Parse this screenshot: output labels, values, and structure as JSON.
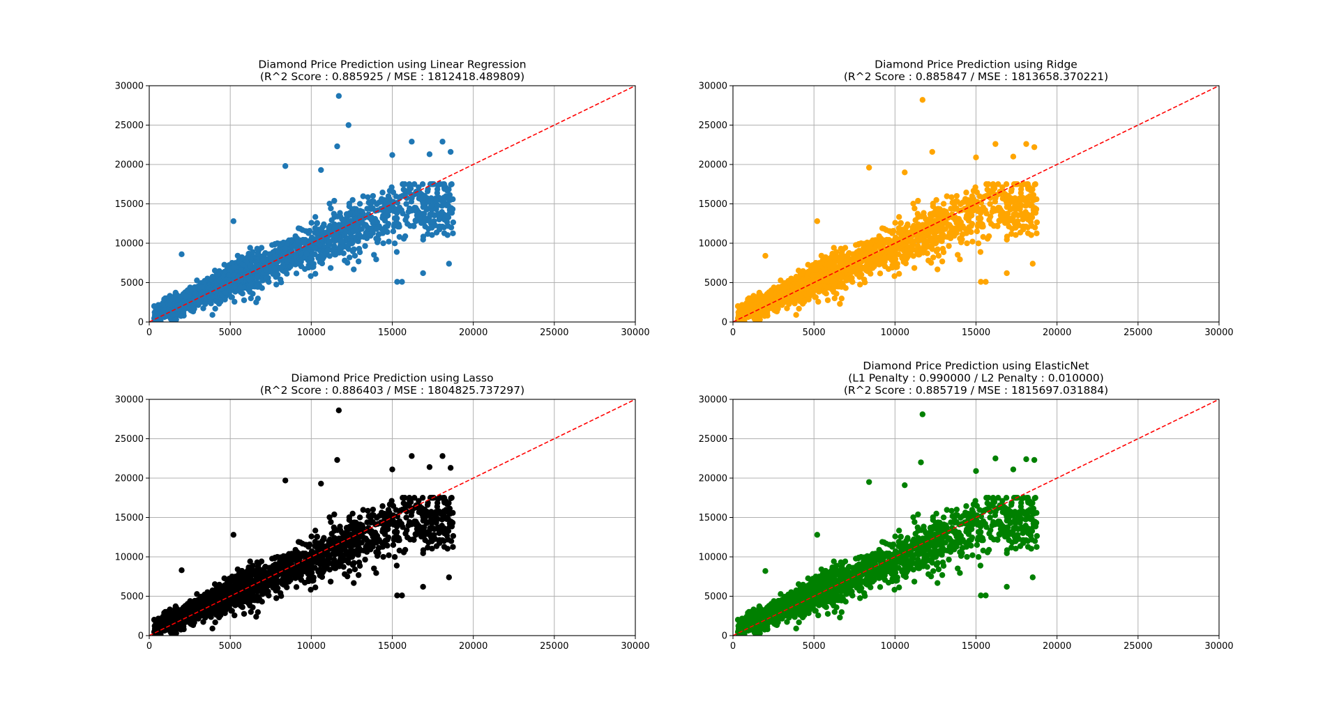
{
  "figure": {
    "background": "#ffffff",
    "grid_color": "#b0b0b0",
    "reference_line_color": "#ff0000"
  },
  "chart_data": [
    {
      "type": "scatter",
      "title": [
        "Diamond Price Prediction using Linear Regression",
        "(R^2 Score : 0.885925 / MSE : 1812418.489809)"
      ],
      "xlabel": "",
      "ylabel": "",
      "xlim": [
        0,
        30000
      ],
      "ylim": [
        0,
        30000
      ],
      "xticks": [
        "0",
        "5000",
        "10000",
        "15000",
        "20000",
        "25000",
        "30000"
      ],
      "yticks": [
        "0",
        "5000",
        "10000",
        "15000",
        "20000",
        "25000",
        "30000"
      ],
      "grid": true,
      "color": "#1f77b4",
      "reference_line": {
        "x": [
          0,
          30000
        ],
        "y": [
          0,
          30000
        ],
        "style": "dashed",
        "color": "#ff0000"
      },
      "outliers": [
        [
          11700,
          28700
        ],
        [
          12300,
          25000
        ],
        [
          11600,
          22300
        ],
        [
          16200,
          22900
        ],
        [
          18100,
          22900
        ],
        [
          18600,
          21600
        ],
        [
          8400,
          19800
        ],
        [
          10600,
          19300
        ],
        [
          15000,
          21200
        ],
        [
          17300,
          21300
        ],
        [
          5200,
          12800
        ],
        [
          15600,
          5100
        ],
        [
          15300,
          5100
        ],
        [
          16900,
          6200
        ],
        [
          18500,
          7400
        ],
        [
          3900,
          900
        ],
        [
          6600,
          2500
        ],
        [
          2000,
          8600
        ]
      ],
      "series": [
        {
          "values": "sampled from the scatter cloud"
        }
      ]
    },
    {
      "type": "scatter",
      "title": [
        "Diamond Price Prediction using Ridge",
        "(R^2 Score : 0.885847 / MSE : 1813658.370221)"
      ],
      "xlabel": "",
      "ylabel": "",
      "xlim": [
        0,
        30000
      ],
      "ylim": [
        0,
        30000
      ],
      "xticks": [
        "0",
        "5000",
        "10000",
        "15000",
        "20000",
        "25000",
        "30000"
      ],
      "yticks": [
        "0",
        "5000",
        "10000",
        "15000",
        "20000",
        "25000",
        "30000"
      ],
      "grid": true,
      "color": "#ffa500",
      "reference_line": {
        "x": [
          0,
          30000
        ],
        "y": [
          0,
          30000
        ],
        "style": "dashed",
        "color": "#ff0000"
      },
      "outliers": [
        [
          11700,
          28200
        ],
        [
          12300,
          21600
        ],
        [
          16200,
          22600
        ],
        [
          18100,
          22600
        ],
        [
          18600,
          22200
        ],
        [
          8400,
          19600
        ],
        [
          10600,
          19000
        ],
        [
          15000,
          20900
        ],
        [
          17300,
          21000
        ],
        [
          5200,
          12800
        ],
        [
          15600,
          5100
        ],
        [
          15300,
          5100
        ],
        [
          16900,
          6200
        ],
        [
          18500,
          7400
        ],
        [
          3900,
          900
        ],
        [
          6600,
          2300
        ],
        [
          2000,
          8400
        ]
      ]
    },
    {
      "type": "scatter",
      "title": [
        "Diamond Price Prediction using Lasso",
        "(R^2 Score : 0.886403 / MSE : 1804825.737297)"
      ],
      "xlabel": "",
      "ylabel": "",
      "xlim": [
        0,
        30000
      ],
      "ylim": [
        0,
        30000
      ],
      "xticks": [
        "0",
        "5000",
        "10000",
        "15000",
        "20000",
        "25000",
        "30000"
      ],
      "yticks": [
        "0",
        "5000",
        "10000",
        "15000",
        "20000",
        "25000",
        "30000"
      ],
      "grid": true,
      "color": "#000000",
      "reference_line": {
        "x": [
          0,
          30000
        ],
        "y": [
          0,
          30000
        ],
        "style": "dashed",
        "color": "#ff0000"
      },
      "outliers": [
        [
          11700,
          28600
        ],
        [
          11600,
          22300
        ],
        [
          16200,
          22800
        ],
        [
          18100,
          22800
        ],
        [
          18600,
          21300
        ],
        [
          8400,
          19700
        ],
        [
          10600,
          19300
        ],
        [
          15000,
          21100
        ],
        [
          17300,
          21400
        ],
        [
          5200,
          12800
        ],
        [
          15600,
          5100
        ],
        [
          15300,
          5100
        ],
        [
          16900,
          6200
        ],
        [
          18500,
          7400
        ],
        [
          3900,
          900
        ],
        [
          6600,
          2400
        ],
        [
          2000,
          8300
        ]
      ]
    },
    {
      "type": "scatter",
      "title": [
        "Diamond Price Prediction using ElasticNet",
        "(L1 Penalty : 0.990000 / L2 Penalty : 0.010000)",
        "(R^2 Score : 0.885719 / MSE : 1815697.031884)"
      ],
      "xlabel": "",
      "ylabel": "",
      "xlim": [
        0,
        30000
      ],
      "ylim": [
        0,
        30000
      ],
      "xticks": [
        "0",
        "5000",
        "10000",
        "15000",
        "20000",
        "25000",
        "30000"
      ],
      "yticks": [
        "0",
        "5000",
        "10000",
        "15000",
        "20000",
        "25000",
        "30000"
      ],
      "grid": true,
      "color": "#008000",
      "reference_line": {
        "x": [
          0,
          30000
        ],
        "y": [
          0,
          30000
        ],
        "style": "dashed",
        "color": "#ff0000"
      },
      "outliers": [
        [
          11700,
          28100
        ],
        [
          11600,
          22000
        ],
        [
          16200,
          22500
        ],
        [
          18100,
          22400
        ],
        [
          18600,
          22300
        ],
        [
          8400,
          19500
        ],
        [
          10600,
          19100
        ],
        [
          15000,
          20900
        ],
        [
          17300,
          21100
        ],
        [
          5200,
          12800
        ],
        [
          15600,
          5100
        ],
        [
          15300,
          5100
        ],
        [
          16900,
          6200
        ],
        [
          18500,
          7400
        ],
        [
          3900,
          900
        ],
        [
          6600,
          2300
        ],
        [
          2000,
          8200
        ]
      ]
    }
  ]
}
